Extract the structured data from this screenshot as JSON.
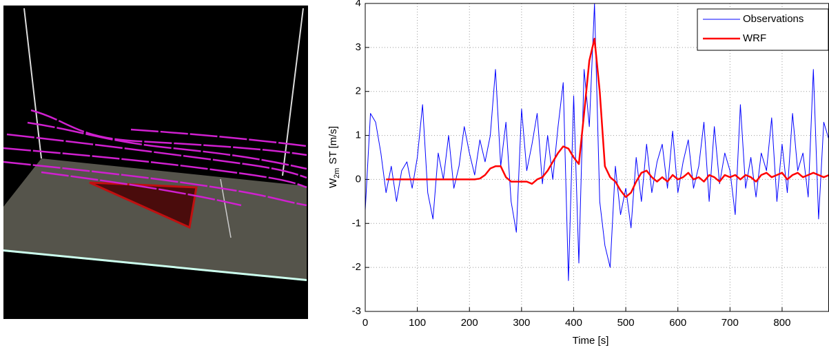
{
  "chart_data": {
    "type": "line",
    "xlabel": "Time [s]",
    "ylabel": {
      "base": "W",
      "subscript": "2m",
      "text": "ST [m/s]"
    },
    "x": [
      0,
      10,
      20,
      30,
      40,
      50,
      60,
      70,
      80,
      90,
      100,
      110,
      120,
      130,
      140,
      150,
      160,
      170,
      180,
      190,
      200,
      210,
      220,
      230,
      240,
      250,
      260,
      270,
      280,
      290,
      300,
      310,
      320,
      330,
      340,
      350,
      360,
      370,
      380,
      390,
      400,
      410,
      420,
      430,
      440,
      450,
      460,
      470,
      480,
      490,
      500,
      510,
      520,
      530,
      540,
      550,
      560,
      570,
      580,
      590,
      600,
      610,
      620,
      630,
      640,
      650,
      660,
      670,
      680,
      690,
      700,
      710,
      720,
      730,
      740,
      750,
      760,
      770,
      780,
      790,
      800,
      810,
      820,
      830,
      840,
      850,
      860,
      870,
      880,
      890
    ],
    "series": [
      {
        "name": "Observations",
        "color": "#0000ff",
        "width": 1,
        "values": [
          -0.7,
          1.5,
          1.3,
          0.6,
          -0.3,
          0.3,
          -0.5,
          0.2,
          0.4,
          -0.2,
          0.5,
          1.7,
          -0.3,
          -0.9,
          0.6,
          0.0,
          1.0,
          -0.2,
          0.3,
          1.2,
          0.6,
          0.1,
          0.9,
          0.4,
          1.0,
          2.5,
          0.3,
          1.3,
          -0.5,
          -1.2,
          1.6,
          0.2,
          0.8,
          1.5,
          -0.1,
          1.0,
          0.0,
          1.2,
          2.2,
          -2.3,
          1.9,
          -1.9,
          2.5,
          1.2,
          4.0,
          -0.5,
          -1.5,
          -2.0,
          0.3,
          -0.8,
          -0.2,
          -1.1,
          0.5,
          -0.5,
          0.8,
          -0.3,
          0.4,
          0.8,
          -0.2,
          1.1,
          -0.3,
          0.4,
          0.9,
          -0.2,
          0.3,
          1.3,
          -0.5,
          1.2,
          -0.1,
          0.6,
          0.2,
          -0.8,
          1.7,
          -0.2,
          0.5,
          -0.4,
          0.6,
          0.2,
          1.4,
          -0.5,
          0.8,
          -0.3,
          1.5,
          0.2,
          0.6,
          -0.4,
          2.5,
          -0.9,
          1.3,
          0.9
        ]
      },
      {
        "name": "WRF",
        "color": "#ff0000",
        "width": 2.5,
        "values": [
          null,
          null,
          null,
          null,
          0,
          0,
          0,
          0,
          0,
          0,
          0,
          0,
          0,
          0,
          0,
          0,
          0,
          0,
          0,
          0,
          0,
          0,
          0.02,
          0.1,
          0.25,
          0.3,
          0.3,
          0.05,
          -0.05,
          -0.05,
          -0.05,
          -0.05,
          -0.1,
          0,
          0.05,
          0.2,
          0.4,
          0.6,
          0.75,
          0.7,
          0.5,
          0.35,
          1.5,
          2.7,
          3.2,
          2.0,
          0.3,
          0.05,
          -0.05,
          -0.25,
          -0.4,
          -0.3,
          -0.05,
          0.15,
          0.2,
          0.05,
          -0.05,
          0.05,
          -0.05,
          0.1,
          0,
          0.05,
          0.15,
          0,
          0.05,
          -0.05,
          0.1,
          0.05,
          -0.05,
          0.1,
          0.05,
          0.1,
          0,
          0.1,
          0.05,
          -0.05,
          0.1,
          0.15,
          0.05,
          0.1,
          0.15,
          0,
          0.1,
          0.15,
          0.05,
          0.1,
          0.15,
          0.1,
          0.05,
          0.1
        ]
      }
    ],
    "xlim": [
      0,
      890
    ],
    "ylim": [
      -3,
      4
    ],
    "xticks": [
      0,
      100,
      200,
      300,
      400,
      500,
      600,
      700,
      800
    ],
    "yticks": [
      -3,
      -2,
      -1,
      0,
      1,
      2,
      3,
      4
    ],
    "grid": true,
    "legend": "upper right"
  }
}
